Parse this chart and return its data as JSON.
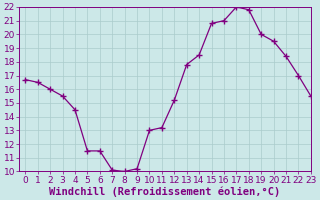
{
  "x": [
    0,
    1,
    2,
    3,
    4,
    5,
    6,
    7,
    8,
    9,
    10,
    11,
    12,
    13,
    14,
    15,
    16,
    17,
    18,
    19,
    20,
    21,
    22,
    23
  ],
  "y": [
    16.7,
    16.5,
    16.0,
    15.5,
    14.5,
    11.5,
    11.5,
    10.1,
    10.0,
    10.2,
    13.0,
    13.2,
    15.2,
    17.8,
    18.5,
    20.8,
    21.0,
    22.0,
    21.8,
    20.0,
    19.5,
    18.4,
    17.0,
    15.5
  ],
  "line_color": "#800080",
  "marker": "+",
  "marker_size": 4,
  "bg_color": "#cce8e8",
  "grid_color": "#aacccc",
  "xlabel": "Windchill (Refroidissement éolien,°C)",
  "xlim": [
    -0.5,
    23
  ],
  "ylim": [
    10,
    22
  ],
  "yticks": [
    10,
    11,
    12,
    13,
    14,
    15,
    16,
    17,
    18,
    19,
    20,
    21,
    22
  ],
  "xticks": [
    0,
    1,
    2,
    3,
    4,
    5,
    6,
    7,
    8,
    9,
    10,
    11,
    12,
    13,
    14,
    15,
    16,
    17,
    18,
    19,
    20,
    21,
    22,
    23
  ],
  "tick_color": "#800080",
  "spine_color": "#800080",
  "xlabel_color": "#800080",
  "xlabel_fontsize": 7.5,
  "tick_fontsize": 6.5,
  "figwidth": 3.2,
  "figheight": 2.0,
  "dpi": 100
}
